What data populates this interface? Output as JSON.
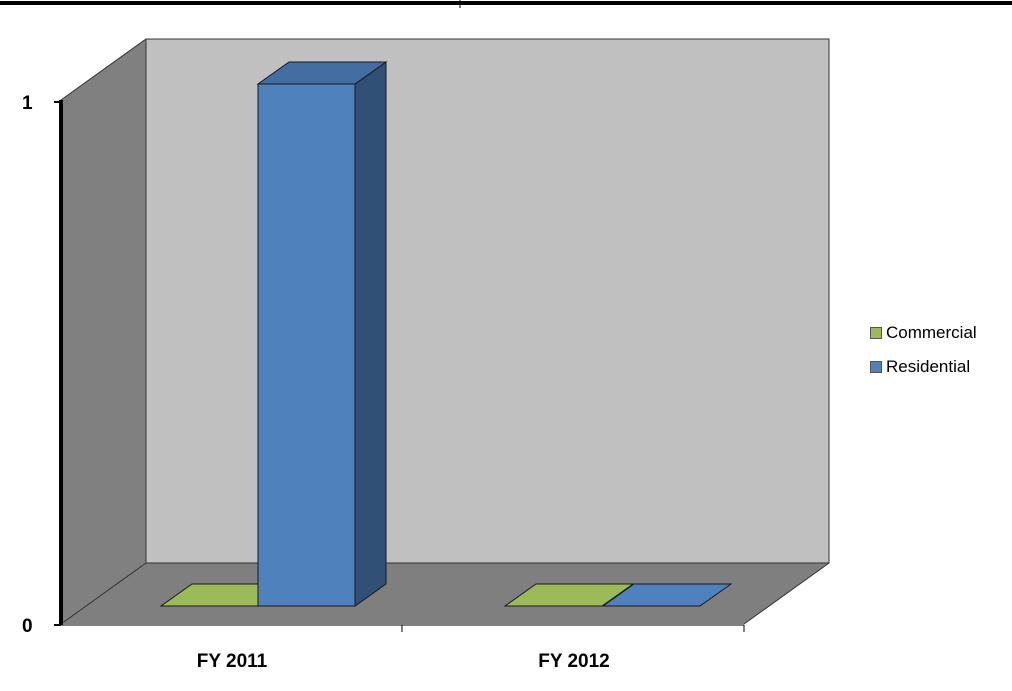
{
  "chart_data": {
    "type": "bar",
    "categories": [
      "FY 2011",
      "FY 2012"
    ],
    "series": [
      {
        "name": "Commercial",
        "values": [
          0,
          0
        ],
        "color": "#9bbb59"
      },
      {
        "name": "Residential",
        "values": [
          1,
          0
        ],
        "color": "#4f81bd"
      }
    ],
    "title": "",
    "xlabel": "",
    "ylabel": "",
    "ylim": [
      0,
      1
    ],
    "yticks": [
      "0",
      "1"
    ],
    "grid": false,
    "legend": "right",
    "style": "3d-clustered-column",
    "colors": {
      "back_wall": "#c0c0c0",
      "side_wall": "#808080",
      "floor": "#7f7f7f"
    }
  }
}
